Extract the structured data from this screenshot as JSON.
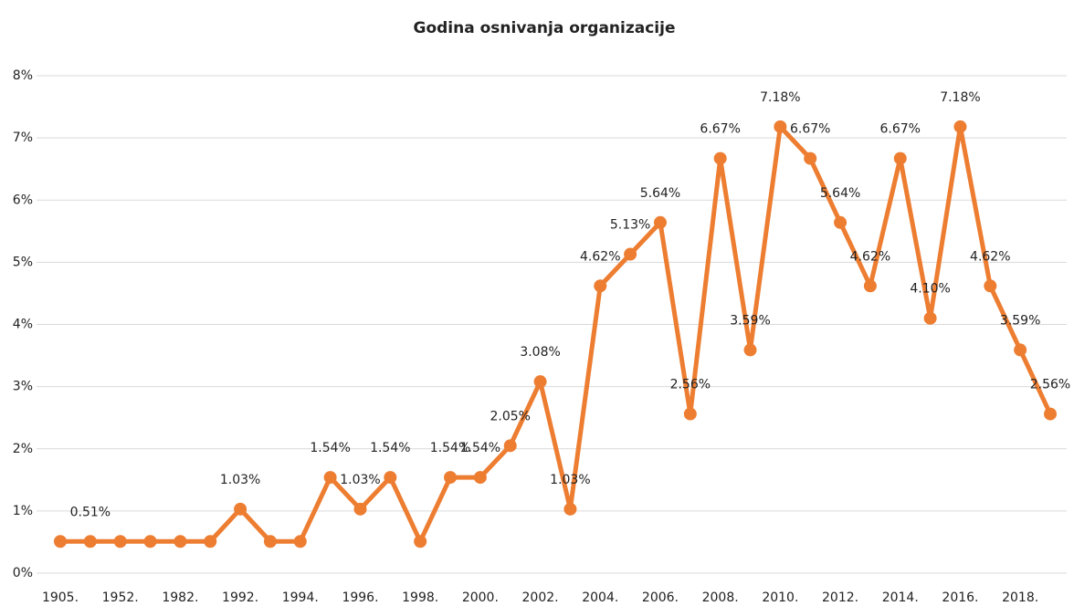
{
  "chart_data": {
    "type": "line",
    "title": "Godina osnivanja organizacije",
    "categories": [
      "1905.",
      null,
      "1952.",
      null,
      "1982.",
      null,
      "1992.",
      null,
      "1994.",
      null,
      "1996.",
      null,
      "1998.",
      null,
      "2000.",
      null,
      "2002.",
      null,
      "2004.",
      null,
      "2006.",
      null,
      "2008.",
      null,
      "2010.",
      null,
      "2012.",
      null,
      "2014.",
      null,
      "2016.",
      null,
      "2018.",
      null
    ],
    "series": [
      {
        "name": "Godina osnivanja organizacije",
        "color": "#ed7d31",
        "values": [
          0.51,
          0.51,
          0.51,
          0.51,
          0.51,
          0.51,
          1.03,
          0.51,
          0.51,
          1.54,
          1.03,
          1.54,
          0.51,
          1.54,
          1.54,
          2.05,
          3.08,
          1.03,
          4.62,
          5.13,
          5.64,
          2.56,
          6.67,
          3.59,
          7.18,
          6.67,
          5.64,
          4.62,
          6.67,
          4.1,
          7.18,
          4.62,
          3.59,
          2.56
        ],
        "value_labels": [
          null,
          "0.51%",
          null,
          null,
          null,
          null,
          "1.03%",
          null,
          null,
          "1.54%",
          "1.03%",
          "1.54%",
          null,
          "1.54%",
          "1.54%",
          "2.05%",
          "3.08%",
          "1.03%",
          "4.62%",
          "5.13%",
          "5.64%",
          "2.56%",
          "6.67%",
          "3.59%",
          "7.18%",
          "6.67%",
          "5.64%",
          "4.62%",
          "6.67%",
          "4.10%",
          "7.18%",
          "4.62%",
          "3.59%",
          "2.56%"
        ]
      }
    ],
    "ylim": [
      0,
      8
    ],
    "yticks": [
      {
        "value": 0,
        "label": "0%"
      },
      {
        "value": 1,
        "label": "1%"
      },
      {
        "value": 2,
        "label": "2%"
      },
      {
        "value": 3,
        "label": "3%"
      },
      {
        "value": 4,
        "label": "4%"
      },
      {
        "value": 5,
        "label": "5%"
      },
      {
        "value": 6,
        "label": "6%"
      },
      {
        "value": 7,
        "label": "7%"
      },
      {
        "value": 8,
        "label": "8%"
      }
    ],
    "grid": true
  }
}
